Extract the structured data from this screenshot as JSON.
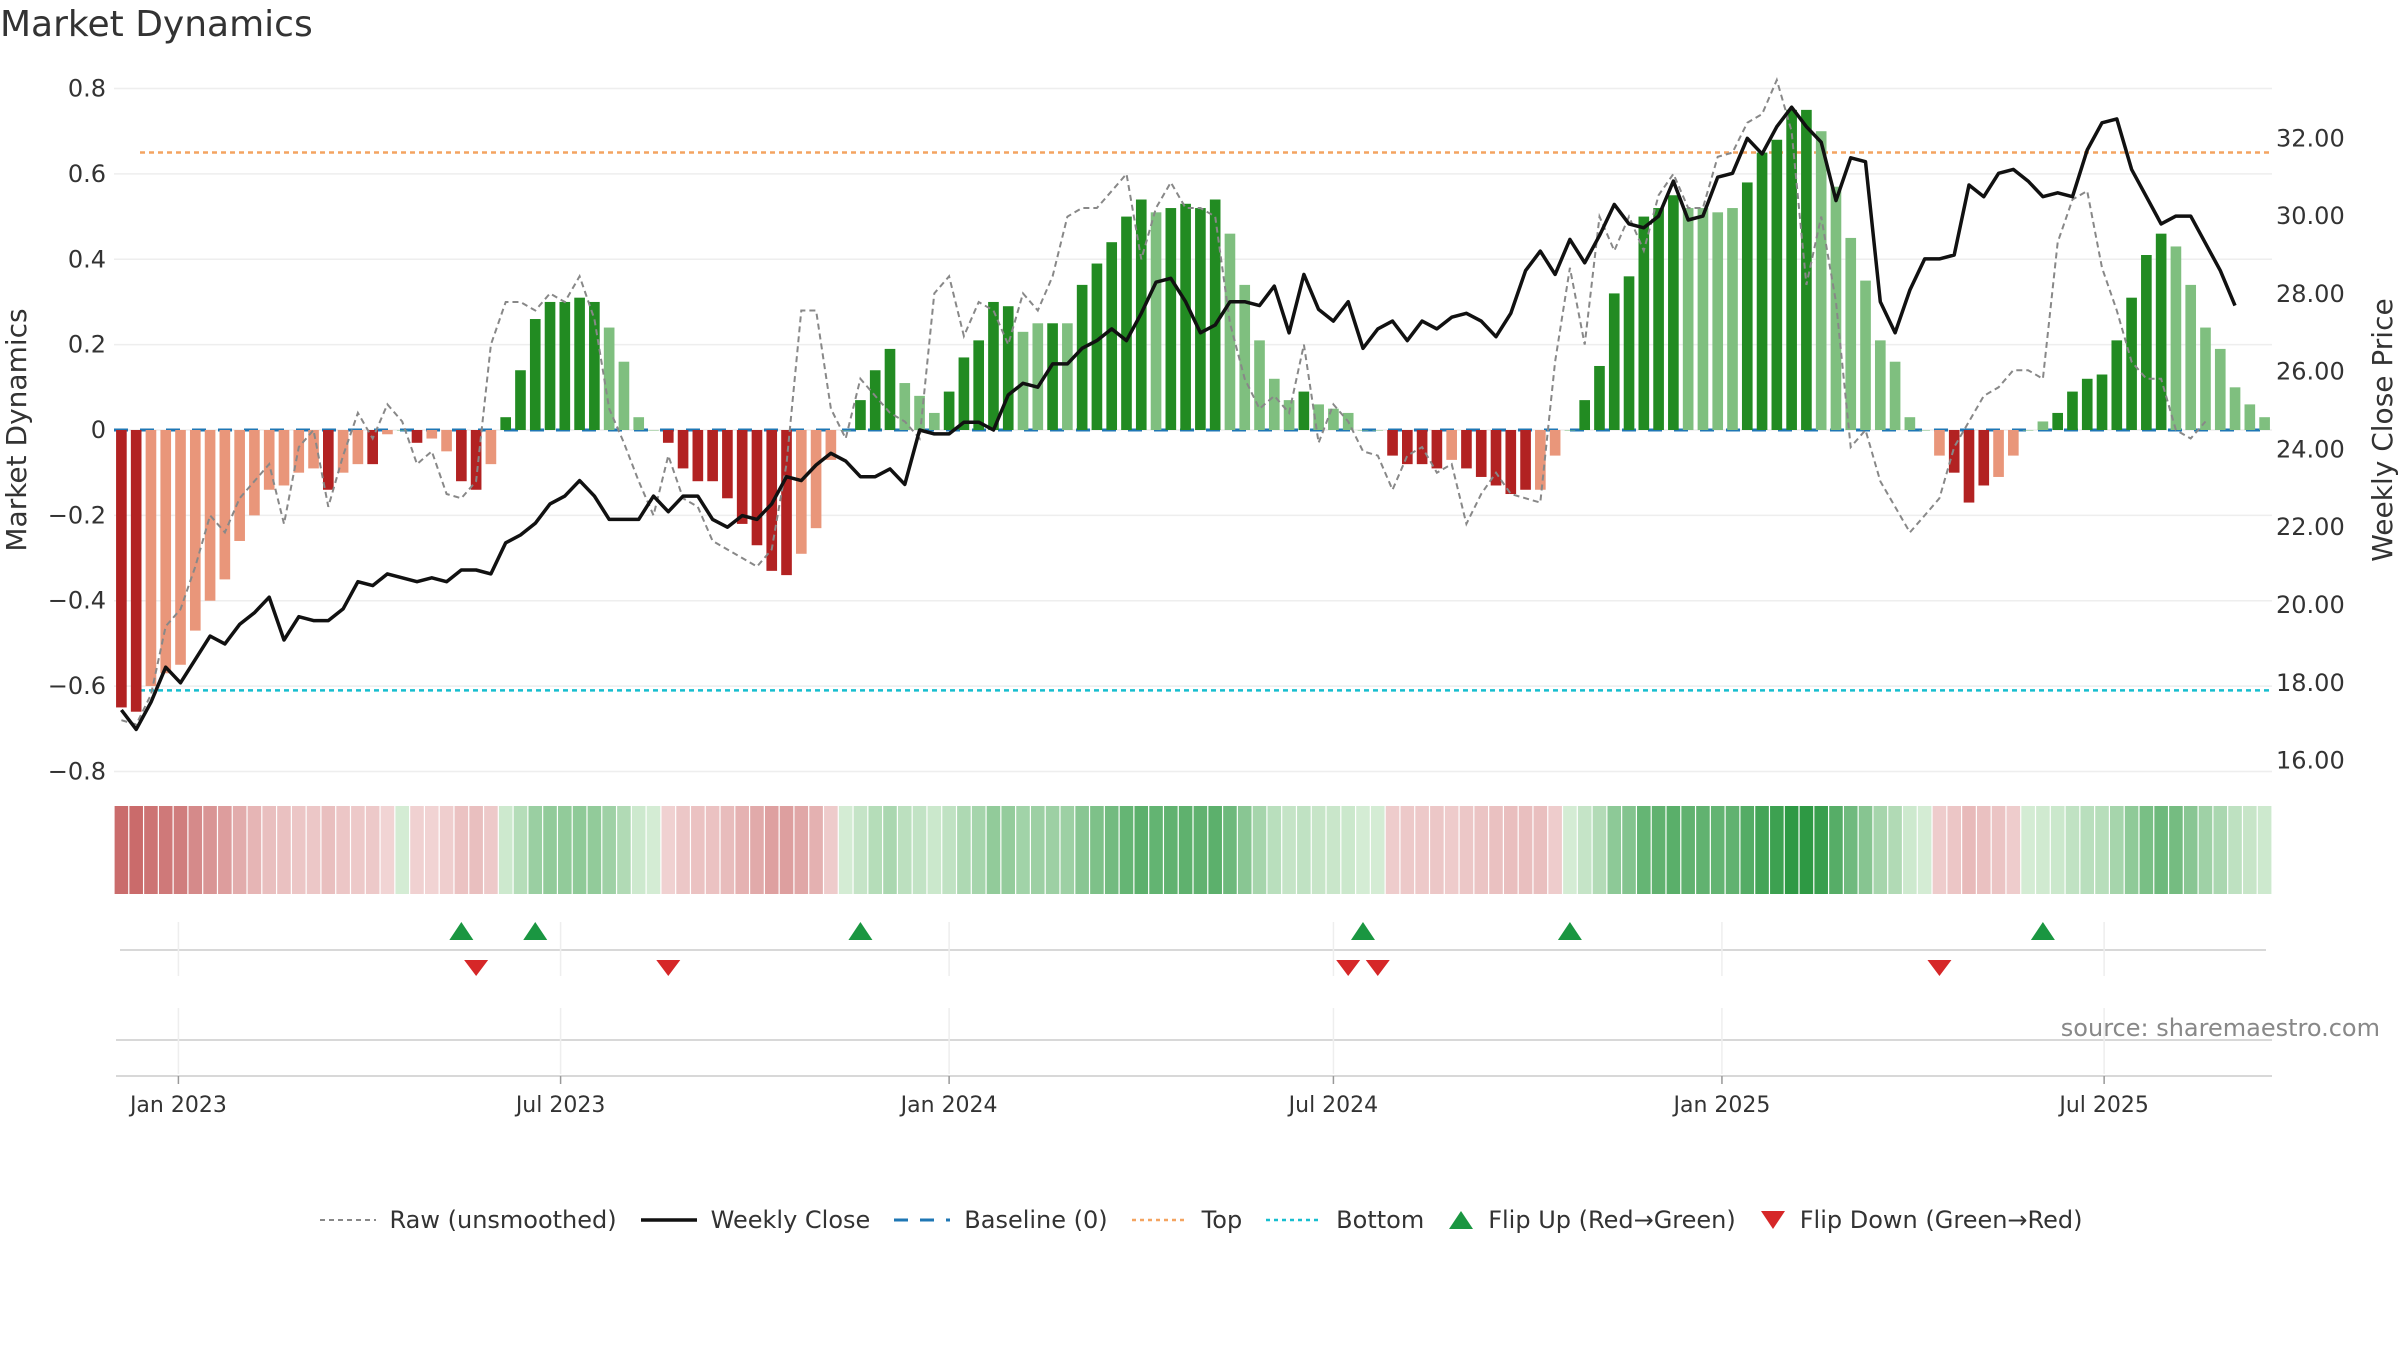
{
  "title": "Market Dynamics",
  "source": "source: sharemaestro.com",
  "legend": [
    {
      "key": "raw",
      "label": "Raw (unsmoothed)"
    },
    {
      "key": "close",
      "label": "Weekly Close"
    },
    {
      "key": "baseline",
      "label": "Baseline (0)"
    },
    {
      "key": "top",
      "label": "Top"
    },
    {
      "key": "bottom",
      "label": "Bottom"
    },
    {
      "key": "flip_up",
      "label": "Flip Up (Red→Green)"
    },
    {
      "key": "flip_down",
      "label": "Flip Down (Green→Red)"
    }
  ],
  "colors": {
    "dark_red": "#b22222",
    "light_red": "#e9967a",
    "dark_green": "#228b22",
    "light_green": "#7fbf7f",
    "close": "#111111",
    "raw": "#888888",
    "baseline": "#1f77b4",
    "top": "#f4a460",
    "bottom": "#17becf",
    "flip_up": "#1a9641",
    "flip_down": "#d62728"
  },
  "chart_data": {
    "type": "bar",
    "ylabel": "Market Dynamics",
    "y2label": "Weekly Close Price",
    "ylim": [
      -0.82,
      0.82
    ],
    "y2lim": [
      15.5,
      33.5
    ],
    "yticks": [
      0.8,
      0.6,
      0.4,
      0.2,
      0,
      -0.2,
      -0.4,
      -0.6,
      -0.8
    ],
    "ytick_labels": [
      "0.8",
      "0.6",
      "0.4",
      "0.2",
      "0",
      "−0.2",
      "−0.4",
      "−0.6",
      "−0.8"
    ],
    "y2ticks": [
      32,
      30,
      28,
      26,
      24,
      22,
      20,
      18,
      16
    ],
    "y2tick_labels": [
      "32.00",
      "30.00",
      "28.00",
      "26.00",
      "24.00",
      "22.00",
      "20.00",
      "18.00",
      "16.00"
    ],
    "top_level": 0.65,
    "bottom_level": -0.61,
    "start_date": "2022-12-05",
    "xticks": [
      {
        "date": "2023-01-01",
        "label": "Jan 2023"
      },
      {
        "date": "2023-07-01",
        "label": "Jul 2023"
      },
      {
        "date": "2024-01-01",
        "label": "Jan 2024"
      },
      {
        "date": "2024-07-01",
        "label": "Jul 2024"
      },
      {
        "date": "2025-01-01",
        "label": "Jan 2025"
      },
      {
        "date": "2025-07-01",
        "label": "Jul 2025"
      }
    ],
    "dynamics": [
      -0.65,
      -0.66,
      -0.6,
      -0.57,
      -0.55,
      -0.47,
      -0.4,
      -0.35,
      -0.26,
      -0.2,
      -0.14,
      -0.13,
      -0.1,
      -0.09,
      -0.14,
      -0.1,
      -0.08,
      -0.08,
      -0.01,
      0,
      -0.03,
      -0.02,
      -0.05,
      -0.12,
      -0.14,
      -0.08,
      0.03,
      0.14,
      0.26,
      0.3,
      0.3,
      0.31,
      0.3,
      0.24,
      0.16,
      0.03,
      0,
      -0.03,
      -0.09,
      -0.12,
      -0.12,
      -0.16,
      -0.22,
      -0.27,
      -0.33,
      -0.34,
      -0.29,
      -0.23,
      -0.07,
      0,
      0.07,
      0.14,
      0.19,
      0.11,
      0.08,
      0.04,
      0.09,
      0.17,
      0.21,
      0.3,
      0.29,
      0.23,
      0.25,
      0.25,
      0.25,
      0.34,
      0.39,
      0.44,
      0.5,
      0.54,
      0.51,
      0.52,
      0.53,
      0.52,
      0.54,
      0.46,
      0.34,
      0.21,
      0.12,
      0.07,
      0.09,
      0.06,
      0.05,
      0.04,
      0,
      0,
      -0.06,
      -0.08,
      -0.08,
      -0.09,
      -0.07,
      -0.09,
      -0.11,
      -0.13,
      -0.15,
      -0.14,
      -0.14,
      -0.06,
      0,
      0.07,
      0.15,
      0.32,
      0.36,
      0.5,
      0.52,
      0.55,
      0.52,
      0.52,
      0.51,
      0.52,
      0.58,
      0.65,
      0.68,
      0.75,
      0.75,
      0.7,
      0.57,
      0.45,
      0.35,
      0.21,
      0.16,
      0.03,
      0,
      -0.06,
      -0.1,
      -0.17,
      -0.13,
      -0.11,
      -0.06,
      0,
      0.02,
      0.04,
      0.09,
      0.12,
      0.13,
      0.21,
      0.31,
      0.41,
      0.46,
      0.43,
      0.34,
      0.24,
      0.19,
      0.1,
      0.06,
      0.03
    ],
    "dark": [
      1,
      1,
      0,
      0,
      0,
      0,
      0,
      0,
      0,
      0,
      0,
      0,
      0,
      0,
      1,
      0,
      0,
      1,
      0,
      0,
      1,
      0,
      0,
      1,
      1,
      0,
      1,
      1,
      1,
      1,
      1,
      1,
      1,
      0,
      0,
      0,
      0,
      1,
      1,
      1,
      1,
      1,
      1,
      1,
      1,
      1,
      0,
      0,
      0,
      0,
      1,
      1,
      1,
      0,
      0,
      0,
      1,
      1,
      1,
      1,
      1,
      0,
      0,
      1,
      0,
      1,
      1,
      1,
      1,
      1,
      0,
      1,
      1,
      1,
      1,
      0,
      0,
      0,
      0,
      0,
      1,
      0,
      0,
      0,
      0,
      0,
      1,
      1,
      1,
      1,
      0,
      1,
      1,
      1,
      1,
      1,
      0,
      0,
      0,
      1,
      1,
      1,
      1,
      1,
      1,
      1,
      0,
      0,
      0,
      0,
      1,
      1,
      1,
      1,
      1,
      0,
      0,
      0,
      0,
      0,
      0,
      0,
      0,
      0,
      1,
      1,
      1,
      0,
      0,
      0,
      0,
      1,
      1,
      1,
      1,
      1,
      1,
      1,
      1,
      0,
      0,
      0,
      0,
      0,
      0,
      0
    ],
    "raw": [
      -0.68,
      -0.69,
      -0.62,
      -0.46,
      -0.42,
      -0.32,
      -0.2,
      -0.24,
      -0.16,
      -0.12,
      -0.08,
      -0.22,
      -0.04,
      0,
      -0.18,
      -0.06,
      0.04,
      -0.02,
      0.06,
      0.02,
      -0.08,
      -0.05,
      -0.15,
      -0.16,
      -0.12,
      0.2,
      0.3,
      0.3,
      0.28,
      0.32,
      0.3,
      0.36,
      0.26,
      0.05,
      -0.03,
      -0.12,
      -0.2,
      -0.06,
      -0.16,
      -0.18,
      -0.26,
      -0.28,
      -0.3,
      -0.32,
      -0.28,
      -0.08,
      0.28,
      0.28,
      0.05,
      -0.02,
      0.12,
      0.08,
      0.04,
      0.02,
      -0.02,
      0.32,
      0.36,
      0.22,
      0.3,
      0.28,
      0.2,
      0.32,
      0.28,
      0.36,
      0.5,
      0.52,
      0.52,
      0.56,
      0.6,
      0.4,
      0.52,
      0.58,
      0.52,
      0.52,
      0.5,
      0.25,
      0.12,
      0.05,
      0.08,
      0.04,
      0.2,
      -0.03,
      0.06,
      0.02,
      -0.05,
      -0.06,
      -0.14,
      -0.06,
      -0.04,
      -0.1,
      -0.08,
      -0.22,
      -0.15,
      -0.1,
      -0.15,
      -0.16,
      -0.17,
      0.16,
      0.38,
      0.2,
      0.5,
      0.42,
      0.5,
      0.42,
      0.55,
      0.6,
      0.52,
      0.52,
      0.64,
      0.65,
      0.72,
      0.74,
      0.82,
      0.7,
      0.34,
      0.5,
      0.3,
      -0.04,
      0,
      -0.12,
      -0.18,
      -0.24,
      -0.2,
      -0.16,
      -0.04,
      0.02,
      0.08,
      0.1,
      0.14,
      0.14,
      0.12,
      0.44,
      0.54,
      0.56,
      0.38,
      0.28,
      0.16,
      0.12,
      0.12,
      0,
      -0.02,
      0.02
    ],
    "close": [
      17.3,
      16.8,
      17.5,
      18.4,
      18.0,
      18.6,
      19.2,
      19.0,
      19.5,
      19.8,
      20.2,
      19.1,
      19.7,
      19.6,
      19.6,
      19.9,
      20.6,
      20.5,
      20.8,
      20.7,
      20.6,
      20.7,
      20.6,
      20.9,
      20.9,
      20.8,
      21.6,
      21.8,
      22.1,
      22.6,
      22.8,
      23.2,
      22.8,
      22.2,
      22.2,
      22.2,
      22.8,
      22.4,
      22.8,
      22.8,
      22.2,
      22.0,
      22.3,
      22.2,
      22.6,
      23.3,
      23.2,
      23.6,
      23.9,
      23.7,
      23.3,
      23.3,
      23.5,
      23.1,
      24.5,
      24.4,
      24.4,
      24.7,
      24.7,
      24.5,
      25.4,
      25.7,
      25.6,
      26.2,
      26.2,
      26.6,
      26.8,
      27.1,
      26.8,
      27.5,
      28.3,
      28.4,
      27.8,
      27.0,
      27.2,
      27.8,
      27.8,
      27.7,
      28.2,
      27.0,
      28.5,
      27.6,
      27.3,
      27.8,
      26.6,
      27.1,
      27.3,
      26.8,
      27.3,
      27.1,
      27.4,
      27.5,
      27.3,
      26.9,
      27.5,
      28.6,
      29.1,
      28.5,
      29.4,
      28.8,
      29.5,
      30.3,
      29.8,
      29.7,
      30.0,
      30.9,
      29.9,
      30.0,
      31.0,
      31.1,
      32.0,
      31.6,
      32.3,
      32.8,
      32.3,
      31.9,
      30.4,
      31.5,
      31.4,
      27.8,
      27.0,
      28.1,
      28.9,
      28.9,
      29.0,
      30.8,
      30.5,
      31.1,
      31.2,
      30.9,
      30.5,
      30.6,
      30.5,
      31.7,
      32.4,
      32.5,
      31.2,
      30.5,
      29.8,
      30.0,
      30.0,
      29.3,
      28.6,
      27.7
    ],
    "flips_up": [
      "2023-05-15",
      "2023-06-19",
      "2023-11-20",
      "2024-07-15",
      "2024-10-21",
      "2025-06-02"
    ],
    "flips_down": [
      "2023-05-22",
      "2023-08-21",
      "2024-07-08",
      "2024-07-22",
      "2025-04-14"
    ],
    "grid": true
  }
}
